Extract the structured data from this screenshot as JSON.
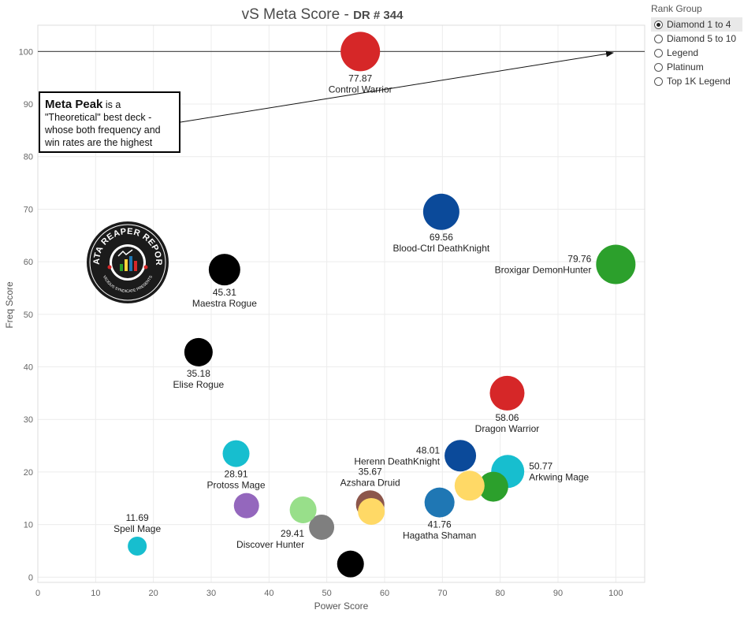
{
  "title": {
    "main": "vS Meta Score",
    "sep": " - ",
    "sub": "DR # 344"
  },
  "legend": {
    "title": "Rank Group",
    "options": [
      {
        "label": "Diamond 1 to 4",
        "selected": true
      },
      {
        "label": "Diamond 5 to 10",
        "selected": false
      },
      {
        "label": "Legend",
        "selected": false
      },
      {
        "label": "Platinum",
        "selected": false
      },
      {
        "label": "Top 1K Legend",
        "selected": false
      }
    ]
  },
  "annotation": {
    "bold": "Meta Peak",
    "text": " is a \"Theoretical\" best deck - whose both frequency and win rates are the highest"
  },
  "logo": {
    "text": "DATA REAPER REPORT",
    "subtext": "VICIOUS SYNDICATE PRESENTS"
  },
  "chart_data": {
    "type": "scatter",
    "title": "vS Meta Score - DR # 344",
    "xlabel": "Power Score",
    "ylabel": "Freq Score",
    "xlim": [
      0,
      105
    ],
    "ylim": [
      -1,
      105
    ],
    "xticks": [
      0,
      10,
      20,
      30,
      40,
      50,
      60,
      70,
      80,
      90,
      100
    ],
    "yticks": [
      0,
      10,
      20,
      30,
      40,
      50,
      60,
      70,
      80,
      90,
      100
    ],
    "reference_line_y": 100,
    "points": [
      {
        "name": "Control Warrior",
        "score": "77.87",
        "x": 55.8,
        "y": 100,
        "color": "#d62728",
        "r": 25,
        "labelPos": "below"
      },
      {
        "name": "Blood-Ctrl DeathKnight",
        "score": "69.56",
        "x": 69.8,
        "y": 69.5,
        "color": "#0b4a9a",
        "r": 23,
        "labelPos": "below"
      },
      {
        "name": "Broxigar DemonHunter",
        "score": "79.76",
        "x": 100,
        "y": 59.5,
        "color": "#2ca02c",
        "r": 25,
        "labelPos": "left"
      },
      {
        "name": "Maestra Rogue",
        "score": "45.31",
        "x": 32.3,
        "y": 58.5,
        "color": "#000000",
        "r": 20,
        "labelPos": "below"
      },
      {
        "name": "Elise Rogue",
        "score": "35.18",
        "x": 27.8,
        "y": 42.8,
        "color": "#000000",
        "r": 18,
        "labelPos": "below"
      },
      {
        "name": "Dragon Warrior",
        "score": "58.06",
        "x": 81.2,
        "y": 35,
        "color": "#d62728",
        "r": 22,
        "labelPos": "below"
      },
      {
        "name": "Herenn DeathKnight",
        "score": "48.01",
        "x": 73.1,
        "y": 23.1,
        "color": "#0b4a9a",
        "r": 20,
        "labelPos": "left"
      },
      {
        "name": "Arkwing Mage",
        "score": "50.77",
        "x": 81.3,
        "y": 20.1,
        "color": "#17becf",
        "r": 21,
        "labelPos": "right"
      },
      {
        "name": "Protoss Mage",
        "score": "28.91",
        "x": 34.3,
        "y": 23.5,
        "color": "#17becf",
        "r": 17,
        "labelPos": "below"
      },
      {
        "name": "Azshara Druid",
        "score": "35.67",
        "x": 57.5,
        "y": 13.8,
        "color": "#8c564b",
        "r": 18,
        "labelPos": "above"
      },
      {
        "name": "Hagatha Shaman",
        "score": "41.76",
        "x": 69.5,
        "y": 14.2,
        "color": "#1f77b4",
        "r": 19,
        "labelPos": "below"
      },
      {
        "name": "Discover Hunter",
        "score": "29.41",
        "x": 49.1,
        "y": 9.5,
        "color": "#7f7f7f",
        "r": 16,
        "labelPos": "left"
      },
      {
        "name": "Spell Mage",
        "score": "11.69",
        "x": 17.2,
        "y": 5.9,
        "color": "#17becf",
        "r": 12,
        "labelPos": "above"
      },
      {
        "name": "",
        "score": "",
        "x": 78.8,
        "y": 17.2,
        "color": "#2ca02c",
        "r": 19,
        "labelPos": "none"
      },
      {
        "name": "",
        "score": "",
        "x": 74.7,
        "y": 17.4,
        "color": "#ffd966",
        "r": 19,
        "labelPos": "none"
      },
      {
        "name": "",
        "score": "",
        "x": 57.7,
        "y": 12.5,
        "color": "#ffd966",
        "r": 17,
        "labelPos": "none"
      },
      {
        "name": "",
        "score": "",
        "x": 45.9,
        "y": 12.8,
        "color": "#98df8a",
        "r": 17,
        "labelPos": "none"
      },
      {
        "name": "",
        "score": "",
        "x": 36.1,
        "y": 13.6,
        "color": "#9467bd",
        "r": 16,
        "labelPos": "none"
      },
      {
        "name": "",
        "score": "",
        "x": 54.1,
        "y": 2.5,
        "color": "#000000",
        "r": 17,
        "labelPos": "none"
      }
    ]
  }
}
